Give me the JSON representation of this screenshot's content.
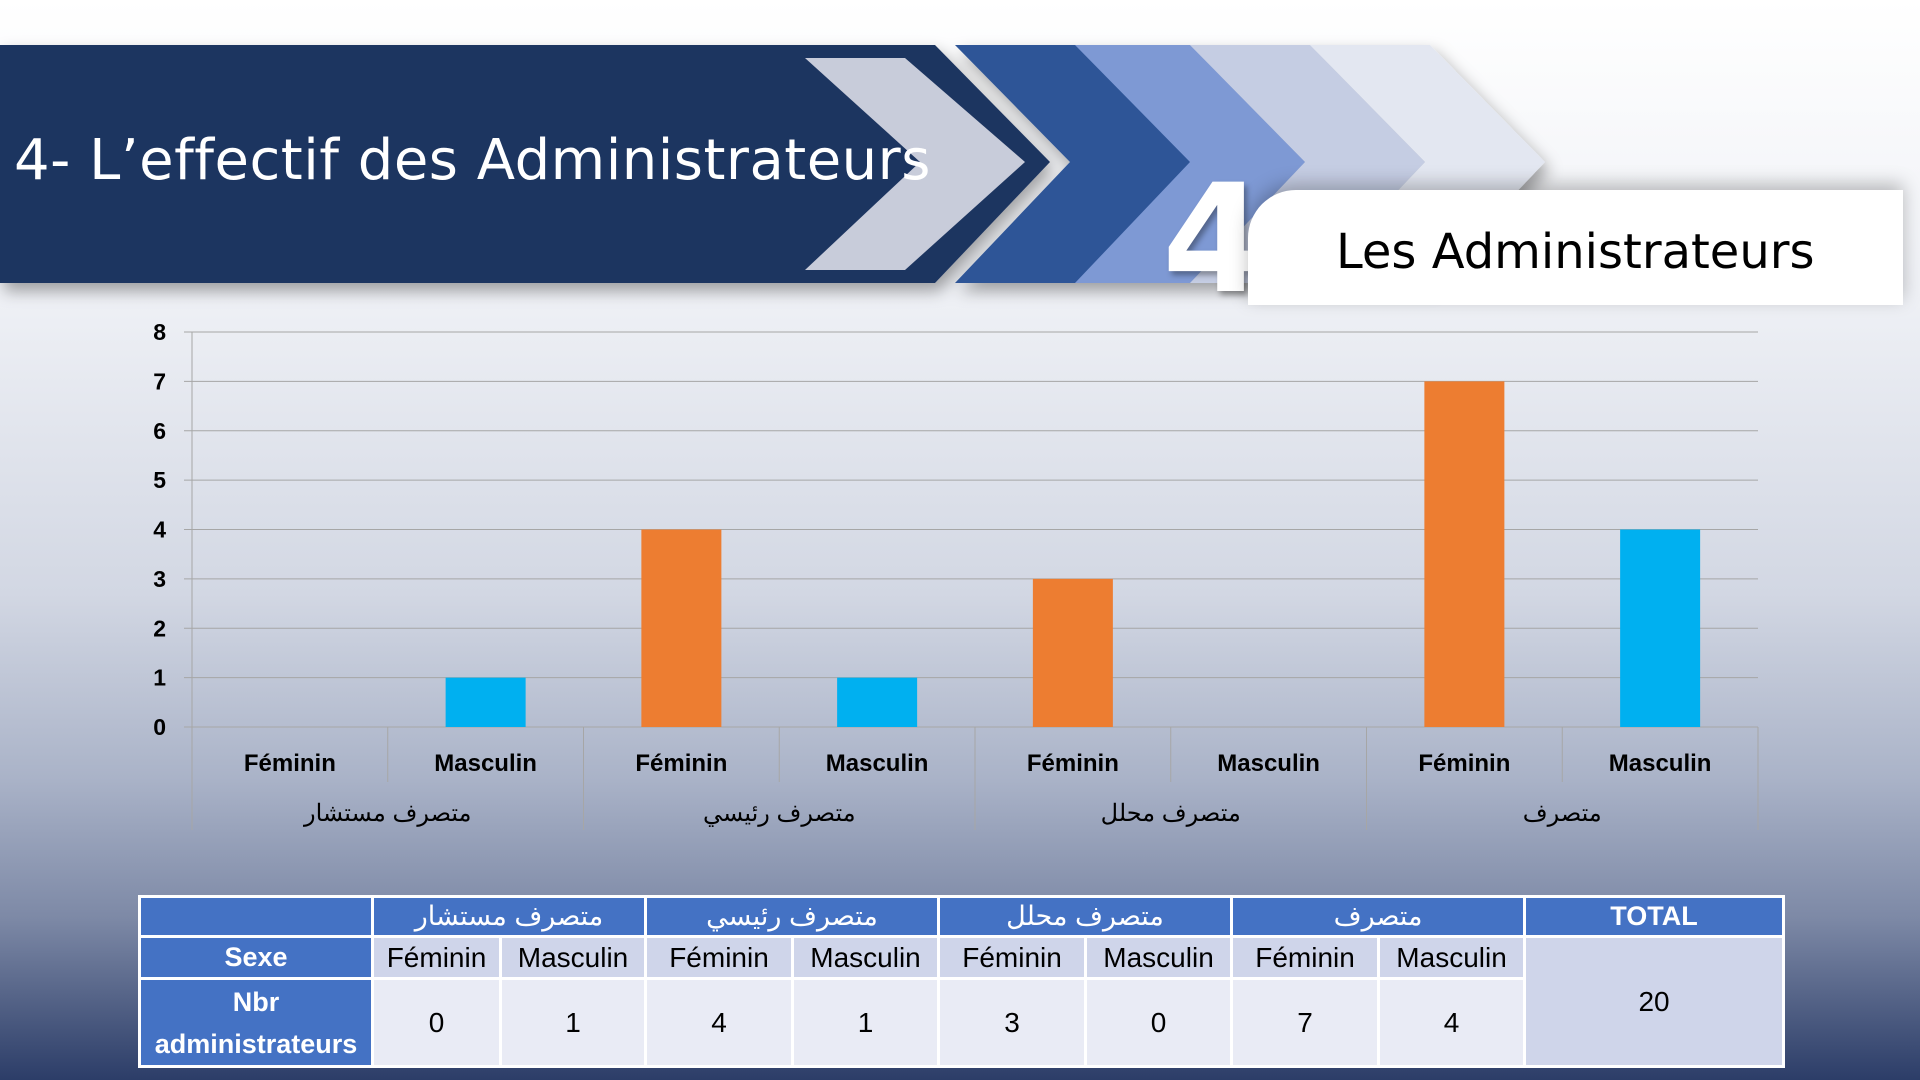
{
  "header": {
    "title": "4- L’effectif des Administrateurs",
    "number": "4",
    "subtitle": "Les Administrateurs"
  },
  "colors": {
    "feminin": "#ed7d31",
    "masculin": "#00b0f0",
    "navy": "#1f3560",
    "table_header": "#4472c4"
  },
  "chart_data": {
    "type": "bar",
    "groups": [
      "متصرف مستشار",
      "متصرف رئيسي",
      "متصرف محلل",
      "متصرف"
    ],
    "subcategories": [
      "Féminin",
      "Masculin"
    ],
    "values": [
      0,
      1,
      4,
      1,
      3,
      0,
      7,
      4
    ],
    "ylim": [
      0,
      8
    ],
    "yticks": [
      "0",
      "1",
      "2",
      "3",
      "4",
      "5",
      "6",
      "7",
      "8"
    ],
    "grid": true,
    "legend": "none"
  },
  "table": {
    "total_label": "TOTAL",
    "sexe_label": "Sexe",
    "nbr_label_1": "Nbr",
    "nbr_label_2": "administrateurs",
    "groups": [
      "متصرف مستشار",
      "متصرف رئيسي",
      "متصرف محلل",
      "متصرف"
    ],
    "sub": [
      "Féminin",
      "Masculin",
      "Féminin",
      "Masculin",
      "Féminin",
      "Masculin",
      "Féminin",
      "Masculin"
    ],
    "values": [
      "0",
      "1",
      "4",
      "1",
      "3",
      "0",
      "7",
      "4"
    ],
    "total": "20"
  }
}
